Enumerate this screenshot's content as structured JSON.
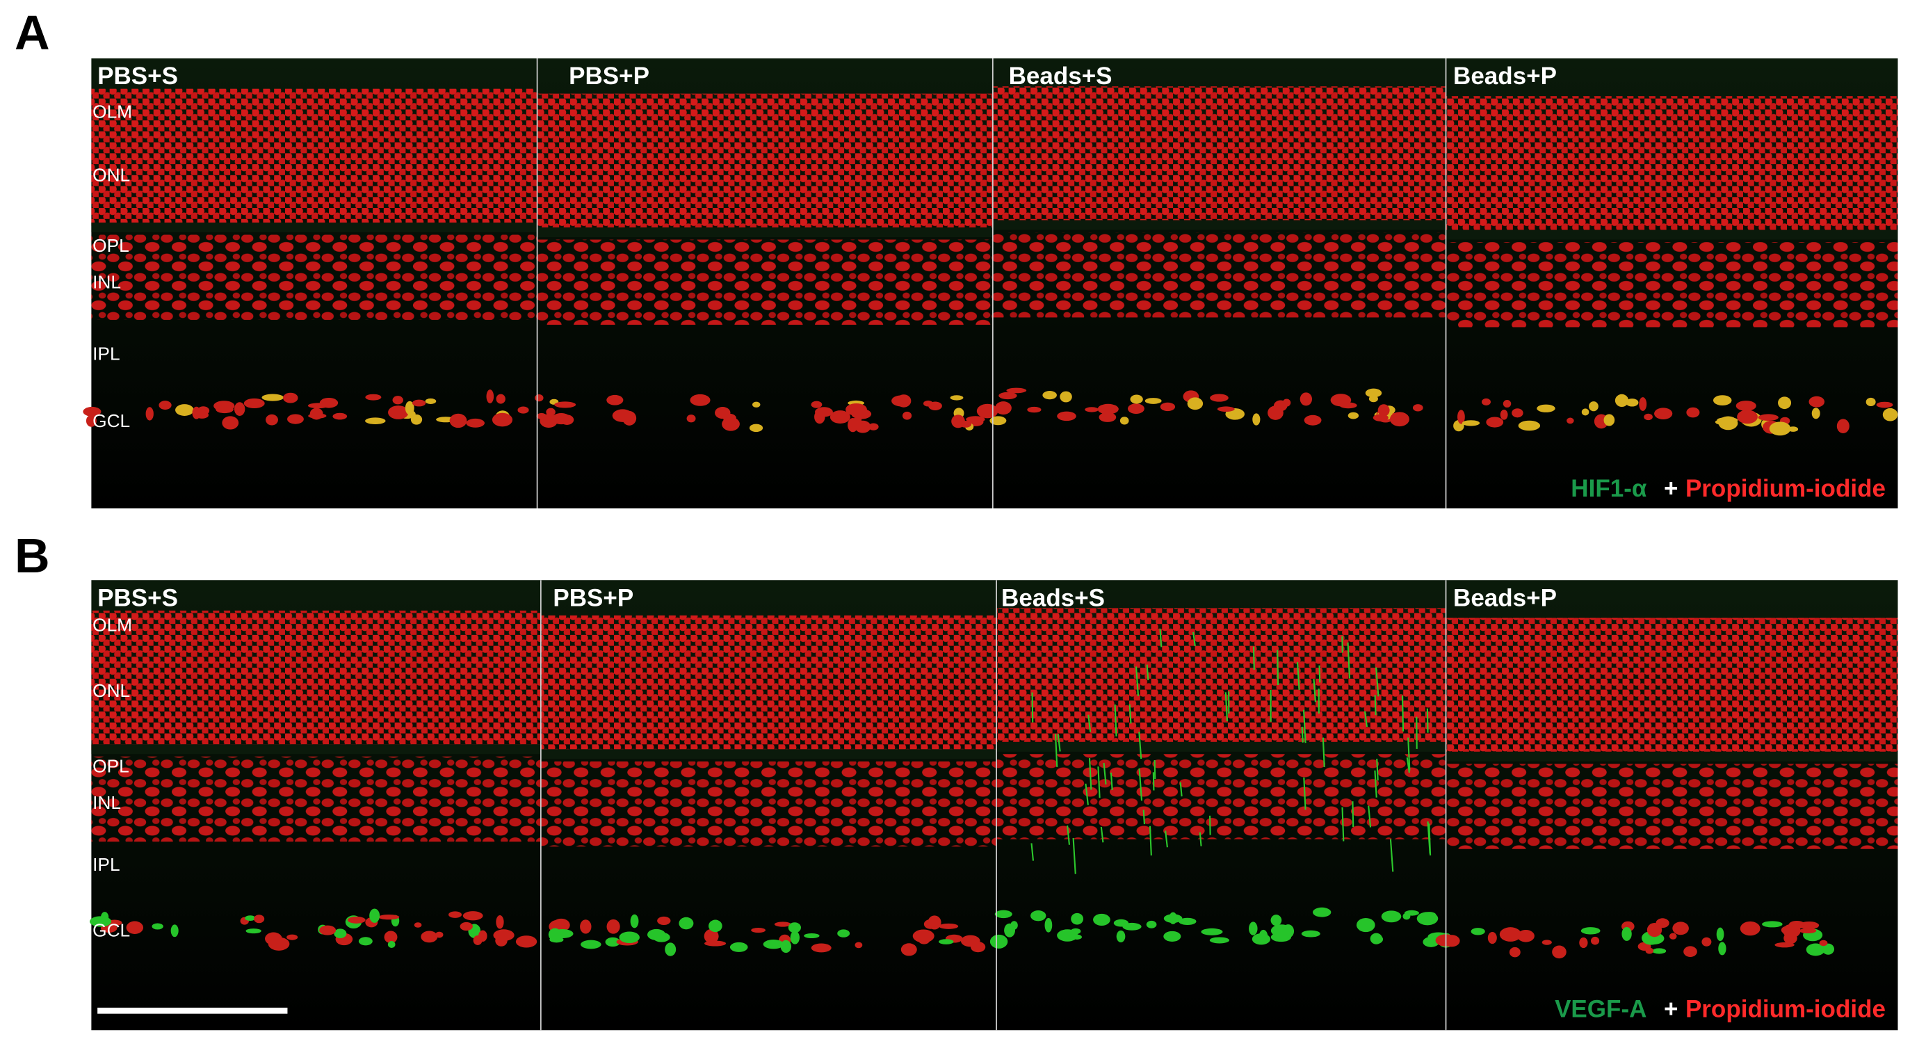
{
  "figure": {
    "panels": [
      {
        "letter": "A",
        "columns": [
          "PBS+S",
          "PBS+P",
          "Beads+S",
          "Beads+P"
        ],
        "layers": [
          "OLM",
          "ONL",
          "OPL",
          "INL",
          "IPL",
          "GCL"
        ],
        "legend": {
          "marker": "HIF1-α",
          "joiner": "+",
          "stain": "Propidium-iodide"
        }
      },
      {
        "letter": "B",
        "columns": [
          "PBS+S",
          "PBS+P",
          "Beads+S",
          "Beads+P"
        ],
        "layers": [
          "OLM",
          "ONL",
          "OPL",
          "INL",
          "IPL",
          "GCL"
        ],
        "legend": {
          "marker": "VEGF-A",
          "joiner": "+",
          "stain": "Propidium-iodide"
        }
      }
    ]
  }
}
